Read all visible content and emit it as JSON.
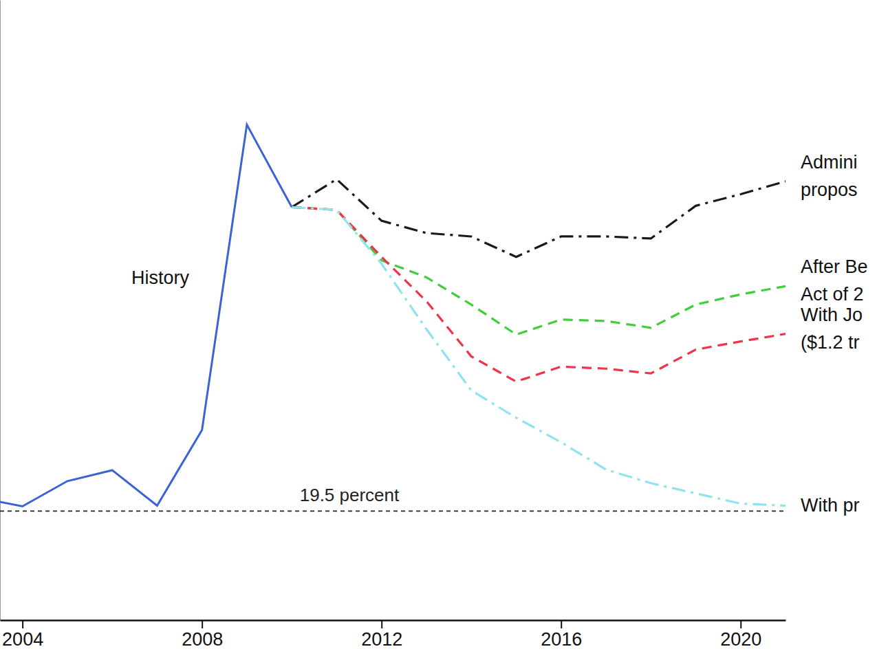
{
  "chart_data": {
    "type": "line",
    "x": [
      2003,
      2004,
      2005,
      2006,
      2007,
      2008,
      2009,
      2010,
      2011,
      2012,
      2013,
      2014,
      2015,
      2016,
      2017,
      2018,
      2019,
      2020,
      2021
    ],
    "xlim": [
      2003.5,
      2021
    ],
    "xticks": [
      2004,
      2008,
      2012,
      2016,
      2020
    ],
    "ylim": [
      17.9,
      27
    ],
    "yticks": [],
    "tick_labels": "x",
    "grid": false,
    "hlines": [
      {
        "value": 19.5,
        "label": "19.5 percent"
      }
    ],
    "series": [
      {
        "name": "History",
        "color": "#3a63d6",
        "line_style": "solid",
        "values": [
          19.7,
          19.57,
          19.94,
          20.1,
          19.58,
          20.69,
          25.17,
          23.96,
          null,
          null,
          null,
          null,
          null,
          null,
          null,
          null,
          null,
          null,
          null
        ]
      },
      {
        "name": "Admini\npropos",
        "color": "#1a1a1a",
        "line_style": "dashdot",
        "values": [
          null,
          null,
          null,
          null,
          null,
          null,
          null,
          23.96,
          24.37,
          23.76,
          23.58,
          23.53,
          23.23,
          23.53,
          23.53,
          23.5,
          23.98,
          24.15,
          24.34
        ]
      },
      {
        "name": "After Be\nAct of 2",
        "color": "#3fcf3a",
        "line_style": "dashed",
        "values": [
          null,
          null,
          null,
          null,
          null,
          null,
          null,
          23.96,
          23.92,
          23.18,
          22.93,
          22.53,
          22.09,
          22.31,
          22.29,
          22.19,
          22.53,
          22.68,
          22.8
        ]
      },
      {
        "name": "With Jo\n($1.2 tr",
        "color": "#f0324a",
        "line_style": "dashed",
        "values": [
          null,
          null,
          null,
          null,
          null,
          null,
          null,
          23.96,
          23.92,
          23.23,
          22.58,
          21.77,
          21.4,
          21.62,
          21.59,
          21.52,
          21.87,
          21.99,
          22.1
        ]
      },
      {
        "name": "With pr",
        "color": "#8fe3ee",
        "line_style": "dashdot",
        "values": [
          null,
          null,
          null,
          null,
          null,
          null,
          null,
          23.96,
          23.92,
          23.13,
          22.17,
          21.27,
          20.87,
          20.51,
          20.11,
          19.91,
          19.76,
          19.61,
          19.58
        ]
      }
    ]
  }
}
